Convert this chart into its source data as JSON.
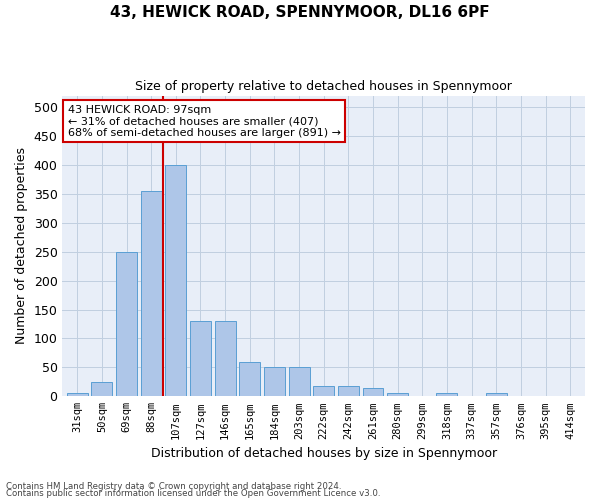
{
  "title": "43, HEWICK ROAD, SPENNYMOOR, DL16 6PF",
  "subtitle": "Size of property relative to detached houses in Spennymoor",
  "xlabel": "Distribution of detached houses by size in Spennymoor",
  "ylabel": "Number of detached properties",
  "bar_labels": [
    "31sqm",
    "50sqm",
    "69sqm",
    "88sqm",
    "107sqm",
    "127sqm",
    "146sqm",
    "165sqm",
    "184sqm",
    "203sqm",
    "222sqm",
    "242sqm",
    "261sqm",
    "280sqm",
    "299sqm",
    "318sqm",
    "337sqm",
    "357sqm",
    "376sqm",
    "395sqm",
    "414sqm"
  ],
  "bar_values": [
    5,
    25,
    250,
    355,
    400,
    130,
    130,
    60,
    50,
    50,
    18,
    18,
    15,
    5,
    0,
    5,
    0,
    5,
    0,
    0,
    1
  ],
  "bar_color": "#aec6e8",
  "bar_edge_color": "#5a9fd4",
  "vline_x": 3.5,
  "vline_color": "#cc0000",
  "annotation_text": "43 HEWICK ROAD: 97sqm\n← 31% of detached houses are smaller (407)\n68% of semi-detached houses are larger (891) →",
  "annotation_box_color": "#ffffff",
  "annotation_box_edge": "#cc0000",
  "ylim": [
    0,
    520
  ],
  "yticks": [
    0,
    50,
    100,
    150,
    200,
    250,
    300,
    350,
    400,
    450,
    500
  ],
  "background_color": "#e8eef8",
  "footer1": "Contains HM Land Registry data © Crown copyright and database right 2024.",
  "footer2": "Contains public sector information licensed under the Open Government Licence v3.0."
}
